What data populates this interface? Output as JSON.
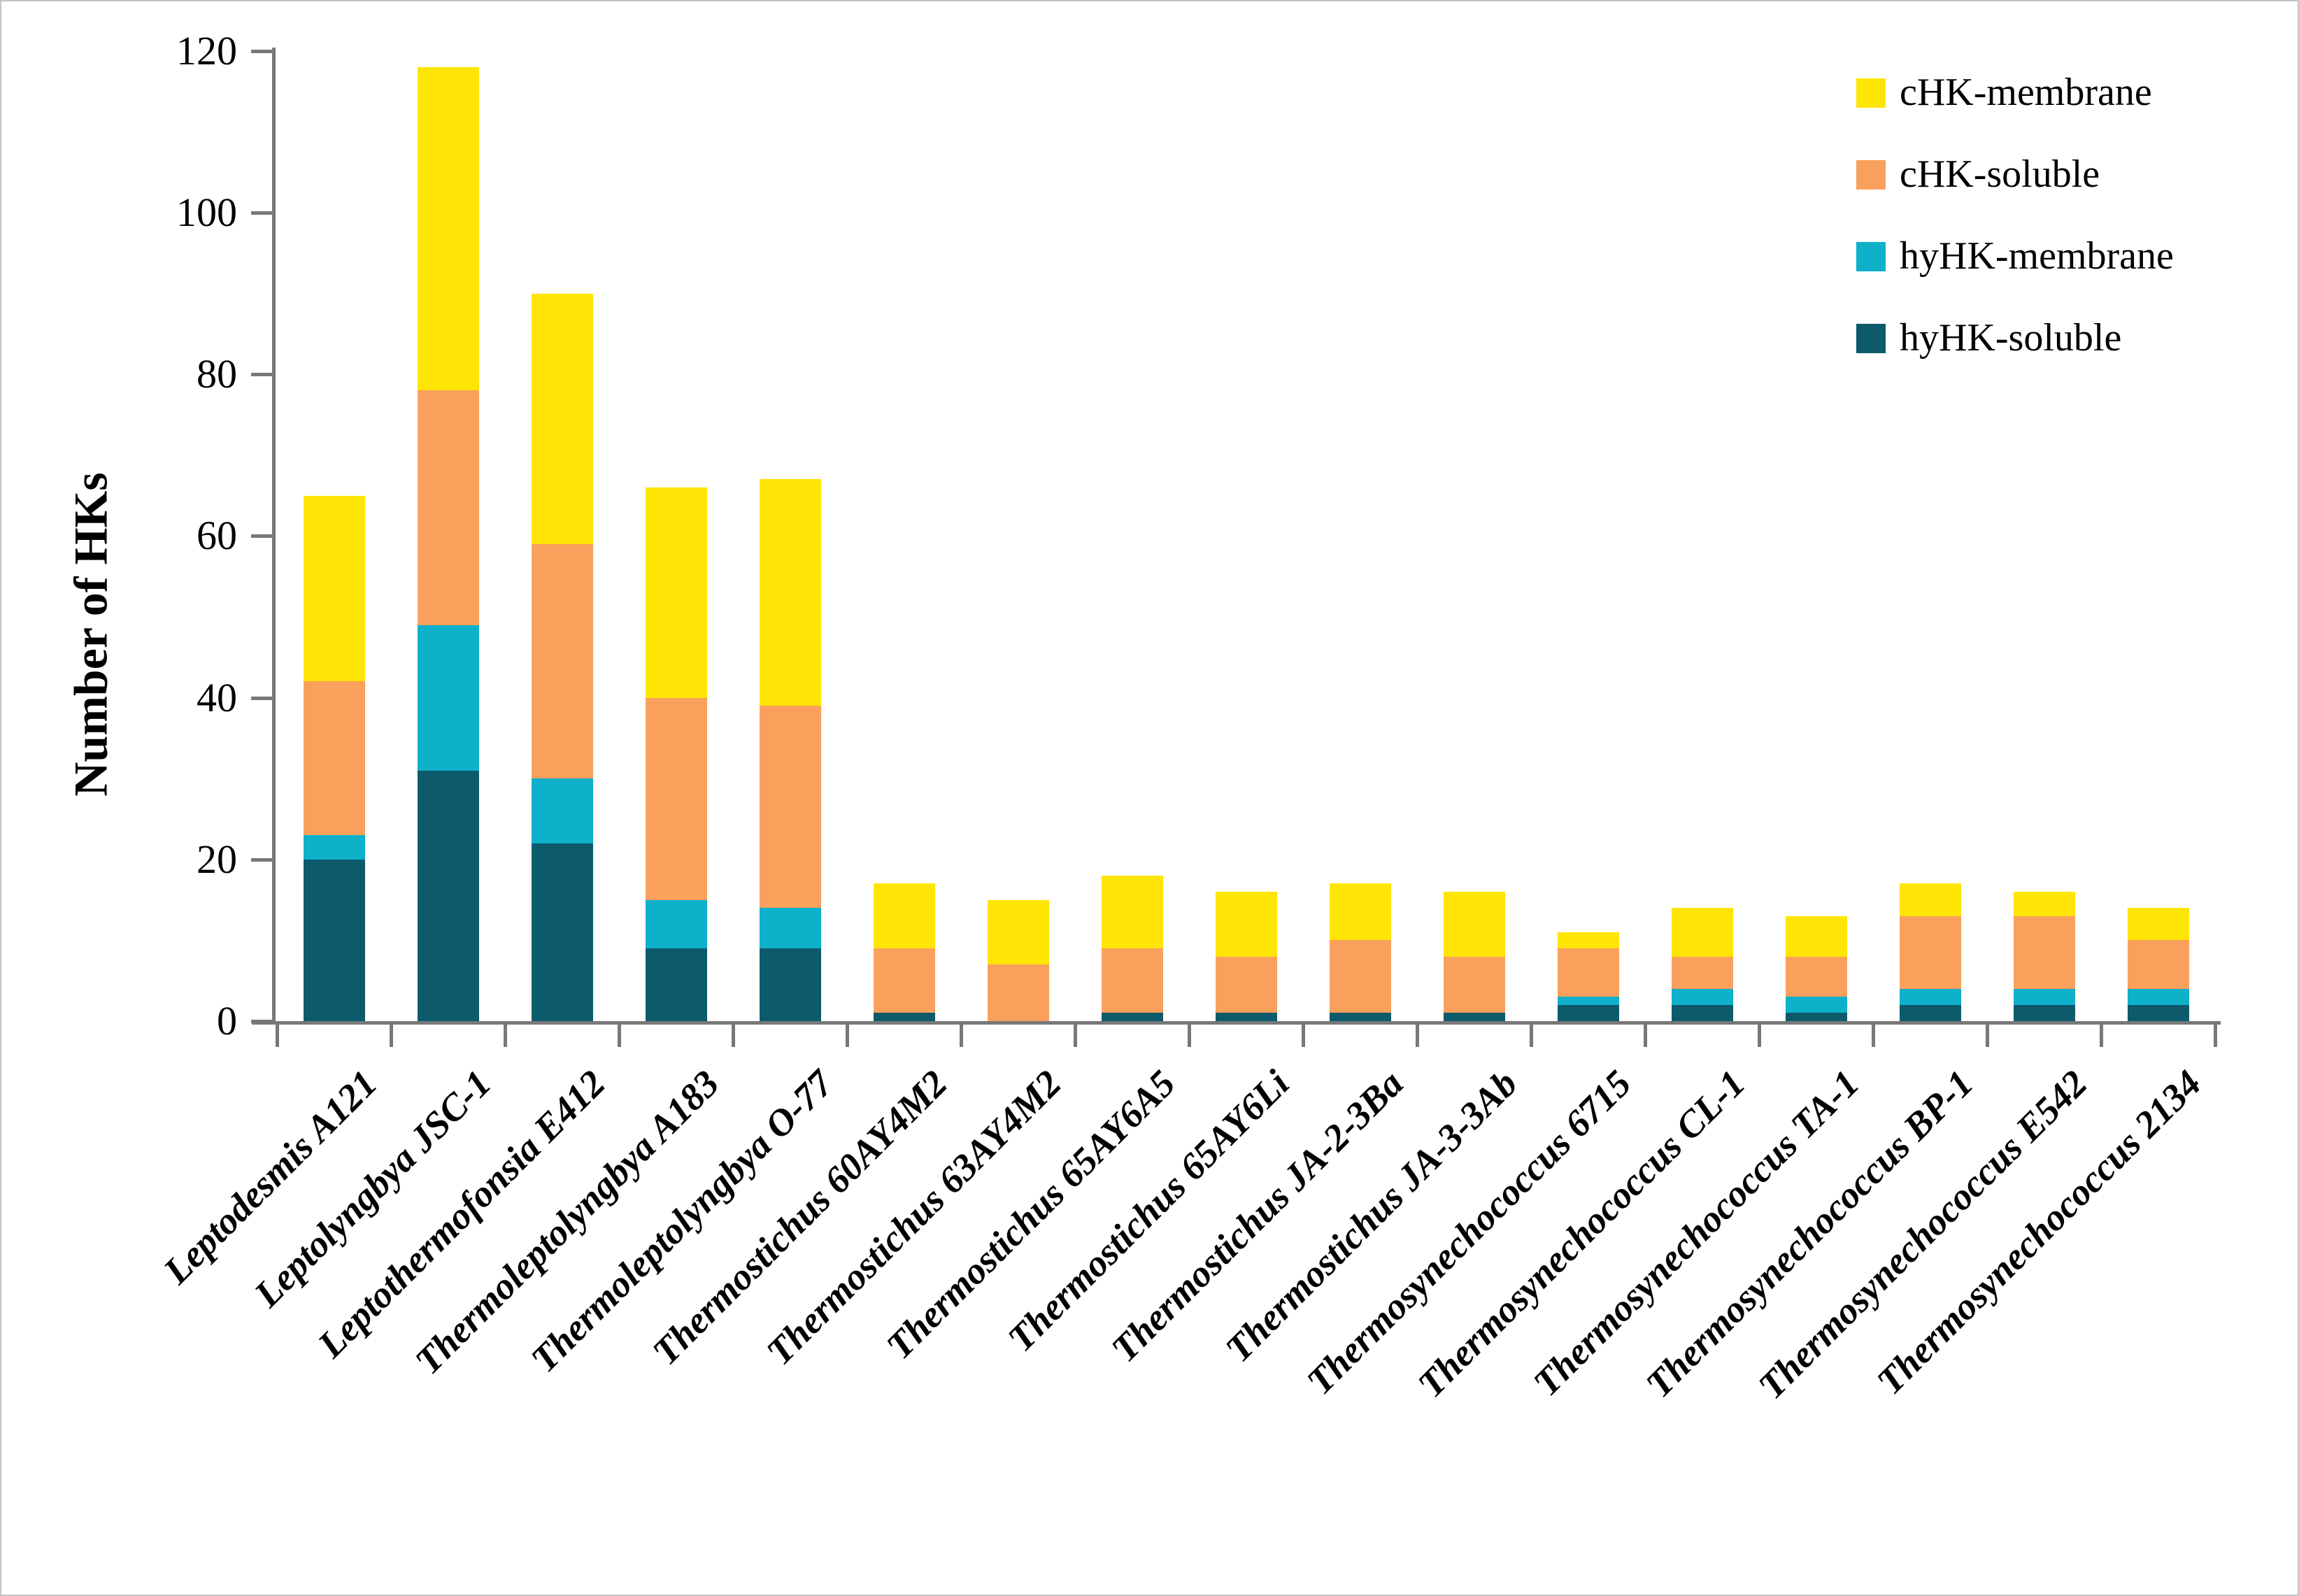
{
  "chart_data": {
    "type": "bar",
    "stacked": true,
    "title": "",
    "xlabel": "",
    "ylabel": "Number of HKs",
    "ylim": [
      0,
      120
    ],
    "yticks": [
      0,
      20,
      40,
      60,
      80,
      100,
      120
    ],
    "grid": false,
    "legend_position": "top-right",
    "legend_order": [
      "cHK-membrane",
      "cHK-soluble",
      "hyHK-membrane",
      "hyHK-soluble"
    ],
    "categories": [
      "Leptodesmis A121",
      "Leptolyngbya JSC-1",
      "Leptothermofonsia E412",
      "Thermoleptolyngbya A183",
      "Thermoleptolyngbya O-77",
      "Thermostichus 60AY4M2",
      "Thermostichus 63AY4M2",
      "Thermostichus 65AY6A5",
      "Thermostichus 65AY6Li",
      "Thermostichus JA-2-3Ba",
      "Thermostichus JA-3-3Ab",
      "Thermosynechococcus 6715",
      "Thermosynechococcus CL-1",
      "Thermosynechococcus TA-1",
      "Thermosynechococcus BP-1",
      "Thermosynechococcus E542",
      "Thermosynechococcus 2134"
    ],
    "series": [
      {
        "name": "hyHK-soluble",
        "color": "#0D5A6C",
        "values": [
          20,
          31,
          22,
          9,
          9,
          1,
          0,
          1,
          1,
          1,
          1,
          2,
          2,
          1,
          2,
          2,
          2
        ]
      },
      {
        "name": "hyHK-membrane",
        "color": "#0EB0CA",
        "values": [
          3,
          18,
          8,
          6,
          5,
          0,
          0,
          0,
          0,
          0,
          0,
          1,
          2,
          2,
          2,
          2,
          2
        ]
      },
      {
        "name": "cHK-soluble",
        "color": "#F9A05C",
        "values": [
          19,
          29,
          29,
          25,
          25,
          8,
          7,
          8,
          7,
          9,
          7,
          6,
          4,
          5,
          9,
          9,
          6
        ]
      },
      {
        "name": "cHK-membrane",
        "color": "#FFE506",
        "values": [
          23,
          40,
          31,
          26,
          28,
          8,
          8,
          9,
          8,
          7,
          8,
          2,
          6,
          5,
          4,
          3,
          4
        ]
      }
    ],
    "totals": [
      65,
      118,
      90,
      66,
      67,
      17,
      15,
      18,
      16,
      17,
      16,
      11,
      14,
      13,
      17,
      16,
      14
    ]
  }
}
